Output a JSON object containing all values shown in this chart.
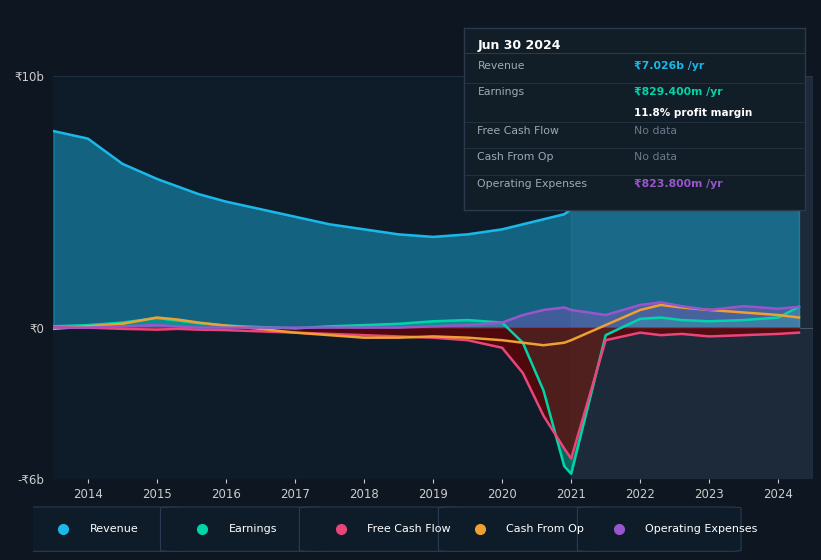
{
  "background_color": "#0e1621",
  "chart_bg": "#0e1c2a",
  "ylim_min": -6000000000,
  "ylim_max": 10000000000,
  "years": [
    2013.5,
    2014.0,
    2014.5,
    2015.0,
    2015.3,
    2015.6,
    2016.0,
    2016.5,
    2017.0,
    2017.5,
    2018.0,
    2018.5,
    2019.0,
    2019.5,
    2020.0,
    2020.3,
    2020.6,
    2020.9,
    2021.0,
    2021.5,
    2022.0,
    2022.3,
    2022.6,
    2023.0,
    2023.5,
    2024.0,
    2024.3
  ],
  "revenue": [
    7800000000,
    7500000000,
    6500000000,
    5900000000,
    5600000000,
    5300000000,
    5000000000,
    4700000000,
    4400000000,
    4100000000,
    3900000000,
    3700000000,
    3600000000,
    3700000000,
    3900000000,
    4100000000,
    4300000000,
    4500000000,
    4700000000,
    5200000000,
    5900000000,
    6200000000,
    6400000000,
    6500000000,
    6700000000,
    7000000000,
    7026000000
  ],
  "earnings": [
    50000000,
    100000000,
    200000000,
    380000000,
    280000000,
    180000000,
    80000000,
    20000000,
    -30000000,
    50000000,
    100000000,
    150000000,
    250000000,
    300000000,
    200000000,
    -600000000,
    -2500000000,
    -5500000000,
    -5800000000,
    -300000000,
    350000000,
    400000000,
    300000000,
    250000000,
    300000000,
    400000000,
    829000000
  ],
  "fcf": [
    20000000,
    0,
    -50000000,
    -80000000,
    -50000000,
    -80000000,
    -100000000,
    -150000000,
    -200000000,
    -250000000,
    -300000000,
    -350000000,
    -400000000,
    -500000000,
    -800000000,
    -1800000000,
    -3500000000,
    -4800000000,
    -5200000000,
    -500000000,
    -200000000,
    -300000000,
    -250000000,
    -350000000,
    -300000000,
    -250000000,
    -200000000
  ],
  "cashop": [
    -50000000,
    50000000,
    150000000,
    400000000,
    320000000,
    200000000,
    80000000,
    -50000000,
    -200000000,
    -300000000,
    -400000000,
    -400000000,
    -350000000,
    -400000000,
    -500000000,
    -600000000,
    -700000000,
    -600000000,
    -500000000,
    100000000,
    700000000,
    900000000,
    800000000,
    700000000,
    600000000,
    500000000,
    400000000
  ],
  "opex": [
    0,
    0,
    50000000,
    100000000,
    50000000,
    0,
    0,
    0,
    0,
    0,
    0,
    0,
    50000000,
    100000000,
    200000000,
    500000000,
    700000000,
    800000000,
    700000000,
    500000000,
    900000000,
    1000000000,
    850000000,
    700000000,
    850000000,
    750000000,
    824000000
  ],
  "revenue_color": "#1ab8e8",
  "earnings_color": "#00d4a8",
  "fcf_color": "#e8457a",
  "cashop_color": "#f0a030",
  "opex_color": "#9955cc",
  "legend_items": [
    "Revenue",
    "Earnings",
    "Free Cash Flow",
    "Cash From Op",
    "Operating Expenses"
  ],
  "legend_colors": [
    "#1ab8e8",
    "#00d4a8",
    "#e8457a",
    "#f0a030",
    "#9955cc"
  ],
  "infobox_bg": "#111d27",
  "infobox_border": "#2a3a4a",
  "infobox_title": "Jun 30 2024",
  "infobox_rows": [
    {
      "label": "Revenue",
      "value": "₹7.026b /yr",
      "vc": "#1ab8e8",
      "bold_v": true,
      "extra": null
    },
    {
      "label": "Earnings",
      "value": "₹829.400m /yr",
      "vc": "#00d4a8",
      "bold_v": true,
      "extra": "11.8% profit margin"
    },
    {
      "label": "Free Cash Flow",
      "value": "No data",
      "vc": "#6a7a8a",
      "bold_v": false,
      "extra": null
    },
    {
      "label": "Cash From Op",
      "value": "No data",
      "vc": "#6a7a8a",
      "bold_v": false,
      "extra": null
    },
    {
      "label": "Operating Expenses",
      "value": "₹823.800m /yr",
      "vc": "#9955cc",
      "bold_v": true,
      "extra": null
    }
  ],
  "xticks": [
    2014,
    2015,
    2016,
    2017,
    2018,
    2019,
    2020,
    2021,
    2022,
    2023,
    2024
  ]
}
